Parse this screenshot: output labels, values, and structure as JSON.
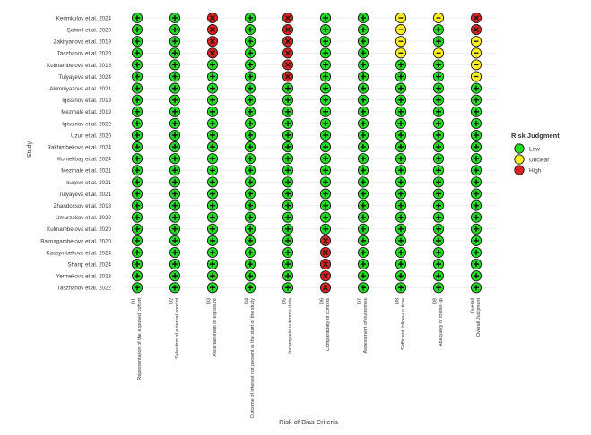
{
  "chart_data": {
    "type": "heatmap",
    "ylabel": "Study",
    "xlabel": "Risk of Bias Criteria",
    "legend": {
      "title": "Risk Judgment",
      "placement": "right",
      "entries": [
        {
          "key": "L",
          "label": "Low",
          "color": "#22dd22",
          "symbol": "+"
        },
        {
          "key": "U",
          "label": "Unclear",
          "color": "#ffee22",
          "symbol": "-"
        },
        {
          "key": "H",
          "label": "High",
          "color": "#dd2222",
          "symbol": "X"
        }
      ]
    },
    "criteria": [
      {
        "code": "D1",
        "label": "Representation of the exposed cohort"
      },
      {
        "code": "D2",
        "label": "Selection of external control"
      },
      {
        "code": "D3",
        "label": "Ascertainment of exposure"
      },
      {
        "code": "D4",
        "label": "Outcome of interest not present at the start of the study"
      },
      {
        "code": "D5",
        "label": "Incomplete outcome data"
      },
      {
        "code": "D6",
        "label": "Comparability of cohorts"
      },
      {
        "code": "D7",
        "label": "Assessment of outcomes"
      },
      {
        "code": "D8",
        "label": "Sufficient follow-up time"
      },
      {
        "code": "D9",
        "label": "Adequacy of follow-up"
      },
      {
        "code": "Overall",
        "label": "Overall Judgment"
      }
    ],
    "studies": [
      "Kerimkulov et al. 2024",
      "Şahinli et al. 2020",
      "Zakiryanova et al. 2019",
      "Taszhanov et al. 2020",
      "Kulmambetova et al. 2018",
      "Tulyayeva et al. 2024",
      "Akimniyazova et al. 2021",
      "Igissinov et al. 2019",
      "Mezmale et al. 2019",
      "Igissinov et al. 2022",
      "Uzun et al. 2020",
      "Rakhimbekova et al. 2024",
      "Komekbay et al. 2024",
      "Mezmale et al. 2021",
      "Isajevs et al. 2021",
      "Tulyayeva et al. 2021",
      "Zhandossov et al. 2018",
      "Umurzakov et al. 2022",
      "Kulmambetova et al. 2020",
      "Balmagambetova et al. 2020",
      "Kassymbekova et al. 2024",
      "Sharip et al. 2024",
      "Yermekova et al. 2023",
      "Taszhanov et al. 2022"
    ],
    "judgments": [
      [
        "L",
        "L",
        "H",
        "L",
        "H",
        "L",
        "L",
        "U",
        "U",
        "H"
      ],
      [
        "L",
        "L",
        "H",
        "L",
        "H",
        "L",
        "L",
        "U",
        "L",
        "H"
      ],
      [
        "L",
        "L",
        "H",
        "L",
        "H",
        "L",
        "L",
        "U",
        "L",
        "U"
      ],
      [
        "L",
        "L",
        "H",
        "L",
        "H",
        "L",
        "L",
        "U",
        "U",
        "U"
      ],
      [
        "L",
        "L",
        "L",
        "L",
        "H",
        "L",
        "L",
        "L",
        "L",
        "U"
      ],
      [
        "L",
        "L",
        "L",
        "L",
        "H",
        "L",
        "L",
        "L",
        "L",
        "U"
      ],
      [
        "L",
        "L",
        "L",
        "L",
        "L",
        "L",
        "L",
        "L",
        "L",
        "L"
      ],
      [
        "L",
        "L",
        "L",
        "L",
        "L",
        "L",
        "L",
        "L",
        "L",
        "L"
      ],
      [
        "L",
        "L",
        "L",
        "L",
        "L",
        "L",
        "L",
        "L",
        "L",
        "L"
      ],
      [
        "L",
        "L",
        "L",
        "L",
        "L",
        "L",
        "L",
        "L",
        "L",
        "L"
      ],
      [
        "L",
        "L",
        "L",
        "L",
        "L",
        "L",
        "L",
        "L",
        "L",
        "L"
      ],
      [
        "L",
        "L",
        "L",
        "L",
        "L",
        "L",
        "L",
        "L",
        "L",
        "L"
      ],
      [
        "L",
        "L",
        "L",
        "L",
        "L",
        "L",
        "L",
        "L",
        "L",
        "L"
      ],
      [
        "L",
        "L",
        "L",
        "L",
        "L",
        "L",
        "L",
        "L",
        "L",
        "L"
      ],
      [
        "L",
        "L",
        "L",
        "L",
        "L",
        "L",
        "L",
        "L",
        "L",
        "L"
      ],
      [
        "L",
        "L",
        "L",
        "L",
        "L",
        "L",
        "L",
        "L",
        "L",
        "L"
      ],
      [
        "L",
        "L",
        "L",
        "L",
        "L",
        "L",
        "L",
        "L",
        "L",
        "L"
      ],
      [
        "L",
        "L",
        "L",
        "L",
        "L",
        "L",
        "L",
        "L",
        "L",
        "L"
      ],
      [
        "L",
        "L",
        "L",
        "L",
        "L",
        "L",
        "L",
        "L",
        "L",
        "L"
      ],
      [
        "L",
        "L",
        "L",
        "L",
        "L",
        "H",
        "L",
        "L",
        "L",
        "L"
      ],
      [
        "L",
        "L",
        "L",
        "L",
        "L",
        "H",
        "L",
        "L",
        "L",
        "L"
      ],
      [
        "L",
        "L",
        "L",
        "L",
        "L",
        "H",
        "L",
        "L",
        "L",
        "L"
      ],
      [
        "L",
        "L",
        "L",
        "L",
        "L",
        "H",
        "L",
        "L",
        "L",
        "L"
      ],
      [
        "L",
        "L",
        "L",
        "L",
        "L",
        "H",
        "L",
        "L",
        "L",
        "L"
      ]
    ],
    "grid": true
  }
}
